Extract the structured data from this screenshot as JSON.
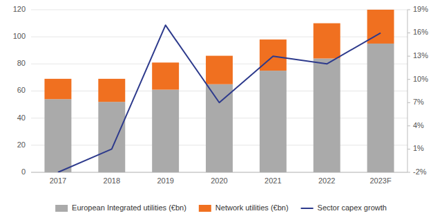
{
  "chart_data": {
    "type": "bar",
    "stacked": true,
    "categories": [
      "2017",
      "2018",
      "2019",
      "2020",
      "2021",
      "2022",
      "2023F"
    ],
    "series": [
      {
        "name": "European Integrated utilities (€bn)",
        "color": "#aaaaaa",
        "values": [
          54,
          52,
          61,
          65,
          75,
          84,
          95
        ]
      },
      {
        "name": "Network utilities (€bn)",
        "color": "#f07020",
        "values": [
          15,
          17,
          20,
          21,
          23,
          26,
          25
        ]
      },
      {
        "name": "Sector capex growth",
        "type": "line",
        "axis": "y2",
        "color": "#2d3a8c",
        "values": [
          -2,
          1,
          17,
          7,
          13,
          12,
          16
        ]
      }
    ],
    "ylim": [
      0,
      120
    ],
    "yticks": [
      0,
      20,
      40,
      60,
      80,
      100,
      120
    ],
    "y2lim": [
      -2,
      19
    ],
    "y2ticks": [
      {
        "value": -2,
        "label": "-2%"
      },
      {
        "value": 1,
        "label": "1%"
      },
      {
        "value": 4,
        "label": "4%"
      },
      {
        "value": 7,
        "label": "7%"
      },
      {
        "value": 10,
        "label": "10%"
      },
      {
        "value": 13,
        "label": "13%"
      },
      {
        "value": 16,
        "label": "16%"
      },
      {
        "value": 19,
        "label": "19%"
      }
    ],
    "grid": true,
    "legend": "bottom"
  }
}
